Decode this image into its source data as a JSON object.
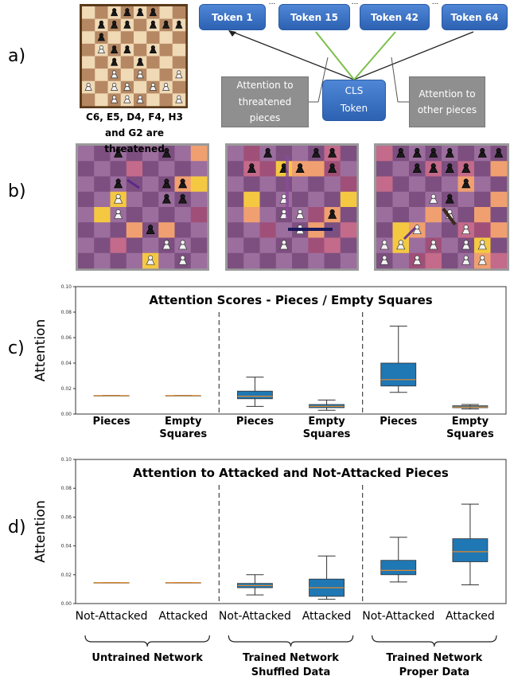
{
  "panel_labels": [
    "a)",
    "b)",
    "c)",
    "d)"
  ],
  "panel_a": {
    "caption": "C6, E5, D4, F4, H3 and G2 are threatened",
    "tokens": [
      "Token 1",
      "Token 15",
      "Token 42",
      "Token 64"
    ],
    "ellipsis": "...",
    "cls": "CLS Token",
    "threatened_note": "Attention to threatened pieces",
    "other_note": "Attention to other pieces"
  },
  "chart_data": [
    {
      "type": "box",
      "title": "Attention Scores - Pieces / Empty Squares",
      "ylabel": "Attention",
      "categories": [
        "Pieces",
        "Empty Squares",
        "Pieces",
        "Empty Squares",
        "Pieces",
        "Empty Squares"
      ],
      "series": [
        {
          "name": "min",
          "values": [
            0.0145,
            0.0145,
            0.006,
            0.003,
            0.017,
            0.004
          ]
        },
        {
          "name": "q1",
          "values": [
            0.0145,
            0.0145,
            0.012,
            0.005,
            0.022,
            0.005
          ]
        },
        {
          "name": "median",
          "values": [
            0.0145,
            0.0145,
            0.014,
            0.006,
            0.027,
            0.0055
          ]
        },
        {
          "name": "q3",
          "values": [
            0.0145,
            0.0145,
            0.018,
            0.0075,
            0.04,
            0.0065
          ]
        },
        {
          "name": "max",
          "values": [
            0.0145,
            0.0145,
            0.029,
            0.011,
            0.069,
            0.0075
          ]
        }
      ],
      "color": "#1f77b4",
      "median_color": "#e08a2c",
      "ylim": [
        0,
        0.1
      ],
      "yticks": [
        {
          "value": 0,
          "label": "0.00"
        },
        {
          "value": 0.02,
          "label": "0.02"
        },
        {
          "value": 0.04,
          "label": "0.04"
        },
        {
          "value": 0.06,
          "label": "0.06"
        },
        {
          "value": 0.08,
          "label": "0.08"
        },
        {
          "value": 0.1,
          "label": "0.10"
        }
      ]
    },
    {
      "type": "box",
      "title": "Attention to Attacked and Not-Attacked Pieces",
      "ylabel": "Attention",
      "categories": [
        "Not-Attacked",
        "Attacked",
        "Not-Attacked",
        "Attacked",
        "Not-Attacked",
        "Attacked"
      ],
      "series": [
        {
          "name": "min",
          "values": [
            0.0145,
            0.0145,
            0.006,
            0.003,
            0.015,
            0.013
          ]
        },
        {
          "name": "q1",
          "values": [
            0.0145,
            0.0145,
            0.011,
            0.005,
            0.02,
            0.029
          ]
        },
        {
          "name": "median",
          "values": [
            0.0145,
            0.0145,
            0.0125,
            0.011,
            0.023,
            0.036
          ]
        },
        {
          "name": "q3",
          "values": [
            0.0145,
            0.0145,
            0.014,
            0.017,
            0.03,
            0.045
          ]
        },
        {
          "name": "max",
          "values": [
            0.0145,
            0.0145,
            0.02,
            0.033,
            0.046,
            0.069
          ]
        }
      ],
      "color": "#1f77b4",
      "median_color": "#e08a2c",
      "ylim": [
        0,
        0.1
      ],
      "yticks": [
        {
          "value": 0,
          "label": "0.00"
        },
        {
          "value": 0.02,
          "label": "0.02"
        },
        {
          "value": 0.04,
          "label": "0.04"
        },
        {
          "value": 0.06,
          "label": "0.06"
        },
        {
          "value": 0.08,
          "label": "0.08"
        },
        {
          "value": 0.1,
          "label": "0.10"
        }
      ],
      "groups": [
        "Untrained Network",
        "Trained Network Shuffled Data",
        "Trained Network Proper Data"
      ]
    }
  ]
}
